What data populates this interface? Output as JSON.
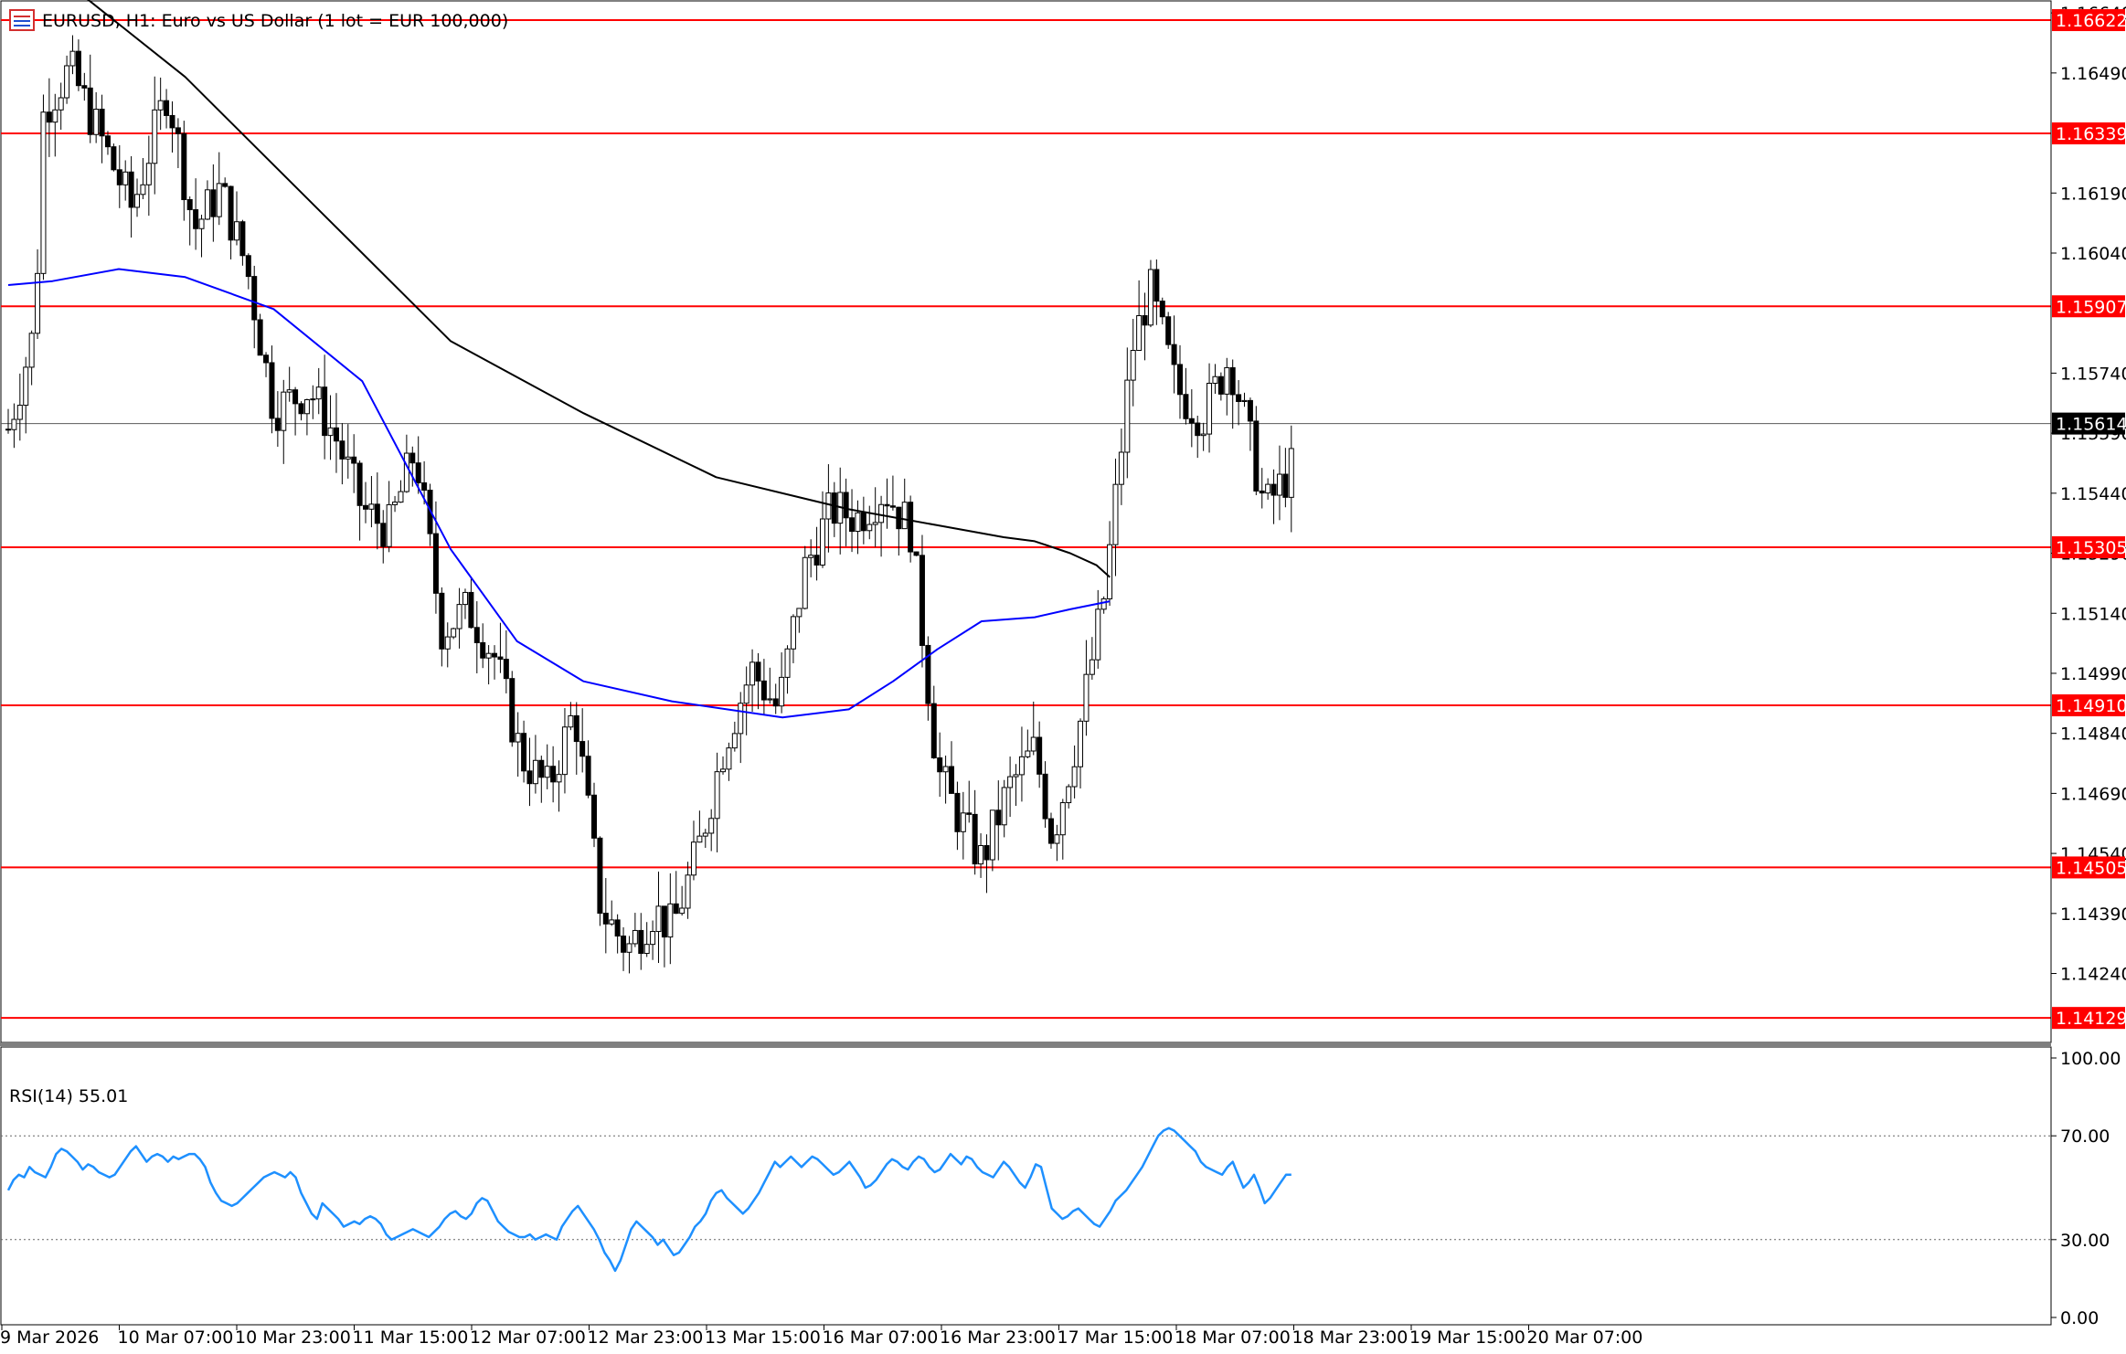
{
  "window": {
    "title": "EURUSD, H1:  Euro vs US Dollar (1 lot = EUR 100,000)",
    "icon": "chart-window-icon"
  },
  "chart_data": {
    "type": "candlestick",
    "symbol": "EURUSD",
    "timeframe": "H1",
    "description": "Euro vs US Dollar (1 lot = EUR 100,000)",
    "ylim": [
      1.1407,
      1.1667
    ],
    "y_ticks": [
      "1.16640",
      "1.16490",
      "1.16190",
      "1.16040",
      "1.15740",
      "1.15590",
      "1.15440",
      "1.15290",
      "1.15140",
      "1.14990",
      "1.14840",
      "1.14690",
      "1.14540",
      "1.14390",
      "1.14240"
    ],
    "x_ticks": [
      "9 Mar 2026",
      "10 Mar 07:00",
      "10 Mar 23:00",
      "11 Mar 15:00",
      "12 Mar 07:00",
      "12 Mar 23:00",
      "13 Mar 15:00",
      "16 Mar 07:00",
      "16 Mar 23:00",
      "17 Mar 15:00",
      "18 Mar 07:00",
      "18 Mar 23:00",
      "19 Mar 15:00",
      "20 Mar 07:00"
    ],
    "current_price": "1.15614",
    "levels": [
      "1.16622",
      "1.16339",
      "1.15907",
      "1.15305",
      "1.14910",
      "1.14505",
      "1.14129"
    ],
    "candle_count": 220,
    "keypoints": [
      [
        0,
        1.156
      ],
      [
        6,
        1.1585
      ],
      [
        8,
        1.164
      ],
      [
        14,
        1.165
      ],
      [
        20,
        1.1635
      ],
      [
        28,
        1.1615
      ],
      [
        36,
        1.1645
      ],
      [
        42,
        1.161
      ],
      [
        48,
        1.162
      ],
      [
        54,
        1.16
      ],
      [
        60,
        1.1565
      ],
      [
        68,
        1.157
      ],
      [
        74,
        1.1558
      ],
      [
        80,
        1.154
      ],
      [
        86,
        1.1535
      ],
      [
        92,
        1.1555
      ],
      [
        98,
        1.151
      ],
      [
        104,
        1.1515
      ],
      [
        110,
        1.1503
      ],
      [
        116,
        1.1478
      ],
      [
        122,
        1.147
      ],
      [
        128,
        1.149
      ],
      [
        134,
        1.144
      ],
      [
        140,
        1.143
      ],
      [
        146,
        1.144
      ],
      [
        150,
        1.1435
      ],
      [
        156,
        1.1455
      ],
      [
        162,
        1.1482
      ],
      [
        168,
        1.15
      ],
      [
        174,
        1.149
      ],
      [
        180,
        1.1525
      ],
      [
        186,
        1.154
      ],
      [
        192,
        1.1538
      ],
      [
        198,
        1.1545
      ],
      [
        204,
        1.1535
      ],
      [
        210,
        1.1475
      ],
      [
        214,
        1.1465
      ],
      [
        220,
        1.1452
      ],
      [
        226,
        1.147
      ],
      [
        232,
        1.148
      ],
      [
        236,
        1.1458
      ],
      [
        242,
        1.1485
      ],
      [
        248,
        1.152
      ],
      [
        254,
        1.158
      ],
      [
        258,
        1.1595
      ],
      [
        264,
        1.157
      ],
      [
        270,
        1.1563
      ],
      [
        276,
        1.1578
      ],
      [
        280,
        1.156
      ],
      [
        284,
        1.154
      ],
      [
        290,
        1.155
      ]
    ],
    "series": [
      {
        "name": "MA-black",
        "color": "#000000",
        "type": "line",
        "points": [
          [
            0.5,
            1.1683
          ],
          [
            15,
            1.167
          ],
          [
            40,
            1.1648
          ],
          [
            70,
            1.1615
          ],
          [
            100,
            1.1582
          ],
          [
            130,
            1.1564
          ],
          [
            160,
            1.1548
          ],
          [
            190,
            1.154
          ],
          [
            210,
            1.1536
          ],
          [
            225,
            1.1533
          ],
          [
            232,
            1.1532
          ],
          [
            240,
            1.1529
          ],
          [
            246,
            1.1526
          ],
          [
            249,
            1.1523
          ]
        ]
      },
      {
        "name": "MA-blue",
        "color": "#0000ff",
        "type": "line",
        "points": [
          [
            0.0,
            1.1596
          ],
          [
            10,
            1.1597
          ],
          [
            25,
            1.16
          ],
          [
            40,
            1.1598
          ],
          [
            60,
            1.159
          ],
          [
            80,
            1.1572
          ],
          [
            100,
            1.153
          ],
          [
            115,
            1.1507
          ],
          [
            130,
            1.1497
          ],
          [
            150,
            1.1492
          ],
          [
            175,
            1.1488
          ],
          [
            190,
            1.149
          ],
          [
            200,
            1.1497
          ],
          [
            210,
            1.1505
          ],
          [
            220,
            1.1512
          ],
          [
            232,
            1.1513
          ],
          [
            240,
            1.1515
          ],
          [
            249,
            1.1517
          ]
        ]
      }
    ],
    "rsi": {
      "label": "RSI(14) 55.01",
      "ylim": [
        0,
        100
      ],
      "ticks": [
        "100.00",
        "70.00",
        "30.00",
        "0.00"
      ],
      "levels": [
        70,
        30
      ],
      "color": "#1e90ff",
      "values": [
        49,
        53,
        55,
        54,
        58,
        56,
        55,
        54,
        58,
        63,
        65,
        64,
        62,
        60,
        57,
        59,
        58,
        56,
        55,
        54,
        55,
        58,
        61,
        64,
        66,
        63,
        60,
        62,
        63,
        62,
        60,
        62,
        61,
        62,
        63,
        63,
        61,
        58,
        52,
        48,
        45,
        44,
        43,
        44,
        46,
        48,
        50,
        52,
        54,
        55,
        56,
        55,
        54,
        56,
        54,
        48,
        44,
        40,
        38,
        44,
        42,
        40,
        38,
        35,
        36,
        37,
        36,
        38,
        39,
        38,
        36,
        32,
        30,
        31,
        32,
        33,
        34,
        33,
        32,
        31,
        33,
        35,
        38,
        40,
        41,
        39,
        38,
        40,
        44,
        46,
        45,
        41,
        37,
        35,
        33,
        32,
        31,
        31,
        32,
        30,
        31,
        32,
        31,
        30,
        35,
        38,
        41,
        43,
        40,
        37,
        34,
        30,
        25,
        22,
        18,
        22,
        28,
        34,
        37,
        35,
        33,
        31,
        28,
        30,
        27,
        24,
        25,
        28,
        31,
        35,
        37,
        40,
        45,
        48,
        49,
        46,
        44,
        42,
        40,
        42,
        45,
        48,
        52,
        56,
        60,
        58,
        60,
        62,
        60,
        58,
        60,
        62,
        61,
        59,
        57,
        55,
        56,
        58,
        60,
        57,
        54,
        50,
        51,
        53,
        56,
        59,
        61,
        60,
        58,
        57,
        60,
        62,
        61,
        58,
        56,
        57,
        60,
        63,
        61,
        59,
        62,
        61,
        58,
        56,
        55,
        54,
        57,
        60,
        58,
        55,
        52,
        50,
        54,
        59,
        58,
        50,
        42,
        40,
        38,
        39,
        41,
        42,
        40,
        38,
        36,
        35,
        38,
        41,
        45,
        47,
        49,
        52,
        55,
        58,
        62,
        66,
        70,
        72,
        73,
        72,
        70,
        68,
        66,
        64,
        60,
        58,
        57,
        56,
        55,
        58,
        60,
        55,
        50,
        52,
        55,
        50,
        44,
        46,
        49,
        52,
        55,
        55.01
      ]
    }
  }
}
